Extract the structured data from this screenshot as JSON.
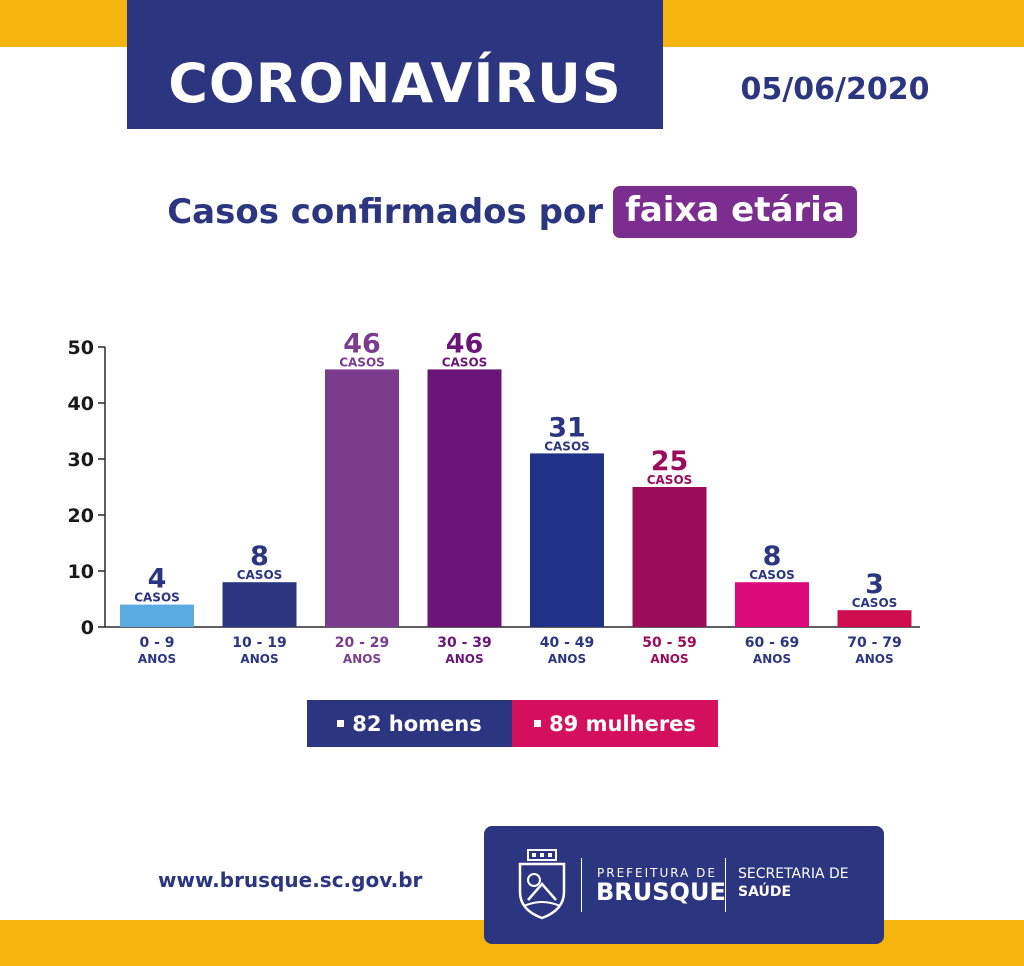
{
  "header": {
    "title": "CORONAVÍRUS",
    "date": "05/06/2020"
  },
  "subtitle": {
    "prefix": "Casos confirmados por",
    "highlight": "faixa etária"
  },
  "colors": {
    "navy": "#2b3580",
    "yellow": "#f6b40e",
    "purple_pill": "#7b2e8f",
    "pink": "#d40f5e"
  },
  "chart_data": {
    "type": "bar",
    "categories": [
      "0 - 9",
      "10 - 19",
      "20 - 29",
      "30 - 39",
      "40 - 49",
      "50 - 59",
      "60 - 69",
      "70 - 79"
    ],
    "category_sublabel": "ANOS",
    "values": [
      4,
      8,
      46,
      46,
      31,
      25,
      8,
      3
    ],
    "value_unit_label": "CASOS",
    "bar_colors": [
      "#5aace0",
      "#2b3580",
      "#7b3c8e",
      "#6a1679",
      "#1f3288",
      "#9b0c5a",
      "#dd0a7c",
      "#cf0c4e"
    ],
    "label_colors": [
      "#2b3580",
      "#2b3580",
      "#7b3c8e",
      "#6a1679",
      "#2b3580",
      "#9b0c5a",
      "#2b3580",
      "#2b3580"
    ],
    "yticks": [
      0,
      10,
      20,
      30,
      40,
      50
    ],
    "ylim": [
      0,
      50
    ],
    "grid": false,
    "legend_position": "bottom-center"
  },
  "legend": {
    "men": "82 homens",
    "women": "89 mulheres"
  },
  "footer": {
    "website": "www.brusque.sc.gov.br",
    "prefeitura": "PREFEITURA DE",
    "city": "BRUSQUE",
    "secretaria": "SECRETARIA DE",
    "saude": "SAÚDE"
  }
}
